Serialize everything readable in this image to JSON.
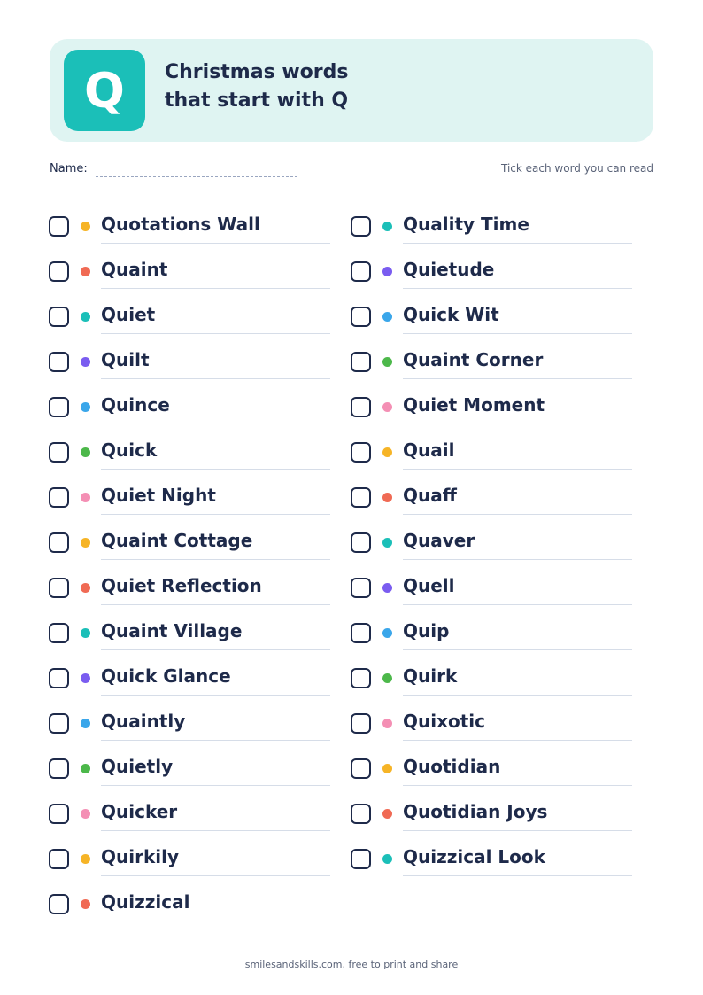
{
  "header": {
    "letter": "Q",
    "title_lines": [
      "Christmas words",
      "that start with Q"
    ]
  },
  "name_label": "Name:",
  "instruction": "Tick each word you can read",
  "columns": [
    [
      "Quotations Wall",
      "Quaint",
      "Quiet",
      "Quilt",
      "Quince",
      "Quick",
      "Quiet Night",
      "Quaint Cottage",
      "Quiet Reflection",
      "Quaint Village",
      "Quick Glance",
      "Quaintly",
      "Quietly",
      "Quicker",
      "Quirkily",
      "Quizzical"
    ],
    [
      "Quality Time",
      "Quietude",
      "Quick Wit",
      "Quaint Corner",
      "Quiet Moment",
      "Quail",
      "Quaff",
      "Quaver",
      "Quell",
      "Quip",
      "Quirk",
      "Quixotic",
      "Quotidian",
      "Quotidian Joys",
      "Quizzical Look"
    ]
  ],
  "footer": "smilesandskills.com, free to print and share"
}
